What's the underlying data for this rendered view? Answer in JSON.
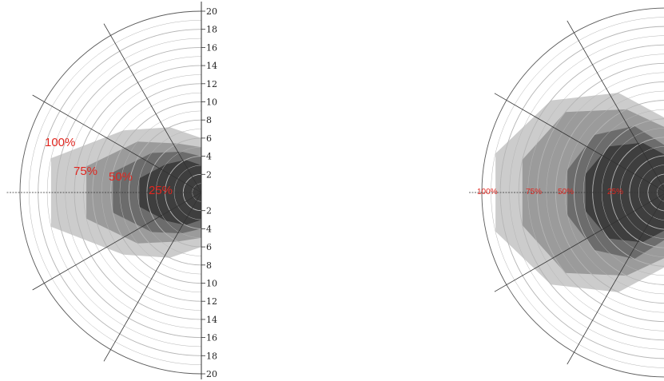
{
  "colors": {
    "percent_label": "#e0261f",
    "ring": "#b5b5b5",
    "ring_outer": "#5a5a5a",
    "spoke": "#333333",
    "zone_fill": "#000000"
  },
  "left_chart": {
    "scale_labels_upper": [
      "20",
      "18",
      "16",
      "14",
      "12",
      "10",
      "8",
      "6",
      "4",
      "2"
    ],
    "scale_labels_lower": [
      "2",
      "4",
      "6",
      "8",
      "10",
      "12",
      "14",
      "16",
      "18",
      "20"
    ],
    "percent_labels": [
      "100%",
      "75%",
      "50%",
      "25%"
    ],
    "zones": [
      {
        "label": "100%",
        "profile": [
          6,
          8,
          11,
          17,
          17,
          11,
          8,
          6
        ],
        "opacity": 0.2
      },
      {
        "label": "75%",
        "profile": [
          5,
          6,
          9,
          13,
          13,
          9,
          6,
          5
        ],
        "opacity": 0.24
      },
      {
        "label": "50%",
        "profile": [
          4,
          5,
          7,
          10,
          10,
          7,
          5,
          4
        ],
        "opacity": 0.3
      },
      {
        "label": "25%",
        "profile": [
          3,
          4,
          5,
          7,
          7,
          5,
          4,
          3
        ],
        "opacity": 0.42
      }
    ]
  },
  "right_chart": {
    "percent_labels": [
      "100%",
      "75%",
      "50%",
      "25%"
    ],
    "zones": [
      {
        "label": "100%",
        "profile": [
          8,
          12,
          16,
          19,
          19,
          16,
          12,
          8
        ],
        "opacity": 0.2
      },
      {
        "label": "75%",
        "profile": [
          7,
          10,
          14,
          16,
          16,
          14,
          10,
          7
        ],
        "opacity": 0.24
      },
      {
        "label": "50%",
        "profile": [
          5,
          8,
          10,
          11,
          11,
          10,
          8,
          5
        ],
        "opacity": 0.3
      },
      {
        "label": "25%",
        "profile": [
          4,
          6,
          8,
          9,
          9,
          8,
          6,
          4
        ],
        "opacity": 0.42
      }
    ]
  }
}
